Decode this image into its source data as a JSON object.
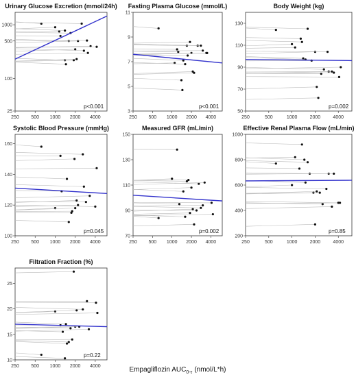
{
  "figure": {
    "x_label": "Empagliflozin AUC",
    "x_label_sub": "0-τ",
    "x_label_unit": "(nmol/L*h)",
    "x_ticks": [
      250,
      500,
      1000,
      2000,
      4000
    ],
    "regression_color": "#3333cc",
    "line_color": "#bbbbbb",
    "point_color": "#111111"
  },
  "chart_data": [
    {
      "type": "scatter",
      "title": "Urinary Glucose Excretion (mmol/24h)",
      "y_scale": "log",
      "ylim": [
        25,
        1700
      ],
      "y_ticks": [
        25,
        100,
        500,
        1000
      ],
      "xlim": [
        250,
        6000
      ],
      "p_value": "p<0.001",
      "regression": [
        [
          250,
          230
        ],
        [
          6000,
          1450
        ]
      ],
      "subjects": [
        {
          "x": 620,
          "y": 1050
        },
        {
          "x": 1000,
          "y": 900
        },
        {
          "x": 1150,
          "y": 750
        },
        {
          "x": 1200,
          "y": 620
        },
        {
          "x": 1400,
          "y": 780
        },
        {
          "x": 1600,
          "y": 500
        },
        {
          "x": 1700,
          "y": 700
        },
        {
          "x": 2000,
          "y": 350
        },
        {
          "x": 2200,
          "y": 500
        },
        {
          "x": 2500,
          "y": 1050
        },
        {
          "x": 3000,
          "y": 510
        },
        {
          "x": 3100,
          "y": 300
        },
        {
          "x": 3400,
          "y": 400
        },
        {
          "x": 4200,
          "y": 390
        },
        {
          "x": 1400,
          "y": 220
        },
        {
          "x": 1450,
          "y": 185
        },
        {
          "x": 1900,
          "y": 220
        },
        {
          "x": 2100,
          "y": 230
        },
        {
          "x": 2700,
          "y": 330
        }
      ]
    },
    {
      "type": "scatter",
      "title": "Fasting Plasma Glucose (mmol/L)",
      "y_scale": "linear",
      "ylim": [
        3,
        11
      ],
      "y_ticks": [
        3,
        5,
        7,
        9,
        11
      ],
      "xlim": [
        250,
        6000
      ],
      "p_value": "p<0.001",
      "regression": [
        [
          250,
          7.6
        ],
        [
          6000,
          6.9
        ]
      ],
      "subjects": [
        {
          "x": 620,
          "y": 9.7
        },
        {
          "x": 1100,
          "y": 6.9
        },
        {
          "x": 1200,
          "y": 8.0
        },
        {
          "x": 1250,
          "y": 7.8
        },
        {
          "x": 1400,
          "y": 5.5
        },
        {
          "x": 1450,
          "y": 4.7
        },
        {
          "x": 1500,
          "y": 7.1
        },
        {
          "x": 1600,
          "y": 6.8
        },
        {
          "x": 1700,
          "y": 8.3
        },
        {
          "x": 1750,
          "y": 7.5
        },
        {
          "x": 1900,
          "y": 8.6
        },
        {
          "x": 2000,
          "y": 7.7
        },
        {
          "x": 2100,
          "y": 6.2
        },
        {
          "x": 2200,
          "y": 6.1
        },
        {
          "x": 2500,
          "y": 8.3
        },
        {
          "x": 2800,
          "y": 8.3
        },
        {
          "x": 3000,
          "y": 7.9
        },
        {
          "x": 3400,
          "y": 7.7
        },
        {
          "x": 3500,
          "y": 7.7
        }
      ]
    },
    {
      "type": "scatter",
      "title": "Body Weight (kg)",
      "y_scale": "linear",
      "ylim": [
        50,
        140
      ],
      "y_ticks": [
        50,
        70,
        90,
        110,
        130
      ],
      "xlim": [
        250,
        6000
      ],
      "p_value": "p=0.002",
      "regression": [
        [
          250,
          97
        ],
        [
          6000,
          96
        ]
      ],
      "subjects": [
        {
          "x": 620,
          "y": 124
        },
        {
          "x": 1000,
          "y": 111
        },
        {
          "x": 1100,
          "y": 108
        },
        {
          "x": 1300,
          "y": 116
        },
        {
          "x": 1350,
          "y": 113
        },
        {
          "x": 1400,
          "y": 98
        },
        {
          "x": 1500,
          "y": 97
        },
        {
          "x": 1600,
          "y": 125
        },
        {
          "x": 1800,
          "y": 96
        },
        {
          "x": 2000,
          "y": 104
        },
        {
          "x": 2100,
          "y": 72
        },
        {
          "x": 2200,
          "y": 62
        },
        {
          "x": 2400,
          "y": 84
        },
        {
          "x": 2600,
          "y": 88
        },
        {
          "x": 2900,
          "y": 104
        },
        {
          "x": 3000,
          "y": 86
        },
        {
          "x": 3300,
          "y": 86
        },
        {
          "x": 3500,
          "y": 85
        },
        {
          "x": 4300,
          "y": 90
        },
        {
          "x": 4100,
          "y": 81
        }
      ]
    },
    {
      "type": "scatter",
      "title": "Systolic Blood Pressure (mmHg)",
      "y_scale": "linear",
      "ylim": [
        100,
        166
      ],
      "y_ticks": [
        100,
        120,
        140,
        160
      ],
      "xlim": [
        250,
        6000
      ],
      "p_value": "p=0.045",
      "regression": [
        [
          250,
          131
        ],
        [
          6000,
          127.5
        ]
      ],
      "subjects": [
        {
          "x": 620,
          "y": 158
        },
        {
          "x": 1000,
          "y": 118
        },
        {
          "x": 1200,
          "y": 152
        },
        {
          "x": 1250,
          "y": 129
        },
        {
          "x": 1500,
          "y": 137
        },
        {
          "x": 1600,
          "y": 109
        },
        {
          "x": 1800,
          "y": 116
        },
        {
          "x": 1950,
          "y": 150
        },
        {
          "x": 2000,
          "y": 118
        },
        {
          "x": 2100,
          "y": 123
        },
        {
          "x": 2200,
          "y": 120
        },
        {
          "x": 2600,
          "y": 153
        },
        {
          "x": 2700,
          "y": 132
        },
        {
          "x": 2900,
          "y": 122
        },
        {
          "x": 3300,
          "y": 126
        },
        {
          "x": 4200,
          "y": 144
        },
        {
          "x": 4000,
          "y": 119
        },
        {
          "x": 1750,
          "y": 115
        }
      ]
    },
    {
      "type": "scatter",
      "title": "Measured GFR (mL/min)",
      "y_scale": "linear",
      "ylim": [
        70,
        150
      ],
      "y_ticks": [
        70,
        90,
        110,
        130,
        150
      ],
      "xlim": [
        250,
        6000
      ],
      "p_value": "p=0.002",
      "regression": [
        [
          250,
          102
        ],
        [
          6000,
          97.5
        ]
      ],
      "subjects": [
        {
          "x": 620,
          "y": 84
        },
        {
          "x": 1000,
          "y": 115
        },
        {
          "x": 1200,
          "y": 138
        },
        {
          "x": 1300,
          "y": 95
        },
        {
          "x": 1500,
          "y": 105
        },
        {
          "x": 1600,
          "y": 85
        },
        {
          "x": 1700,
          "y": 113
        },
        {
          "x": 1800,
          "y": 114
        },
        {
          "x": 1900,
          "y": 88
        },
        {
          "x": 2000,
          "y": 108
        },
        {
          "x": 2100,
          "y": 91
        },
        {
          "x": 2200,
          "y": 79
        },
        {
          "x": 2400,
          "y": 90
        },
        {
          "x": 2600,
          "y": 111
        },
        {
          "x": 2800,
          "y": 92
        },
        {
          "x": 3000,
          "y": 94
        },
        {
          "x": 3200,
          "y": 112
        },
        {
          "x": 4300,
          "y": 87
        },
        {
          "x": 4100,
          "y": 96
        }
      ]
    },
    {
      "type": "scatter",
      "title": "Effective Renal Plasma Flow (mL/min)",
      "y_scale": "linear",
      "ylim": [
        200,
        1000
      ],
      "y_ticks": [
        200,
        400,
        600,
        800,
        1000
      ],
      "xlim": [
        250,
        6000
      ],
      "p_value": "p=0.85",
      "regression": [
        [
          250,
          633
        ],
        [
          6000,
          638
        ]
      ],
      "subjects": [
        {
          "x": 620,
          "y": 770
        },
        {
          "x": 1000,
          "y": 600
        },
        {
          "x": 1100,
          "y": 820
        },
        {
          "x": 1250,
          "y": 730
        },
        {
          "x": 1350,
          "y": 920
        },
        {
          "x": 1450,
          "y": 800
        },
        {
          "x": 1500,
          "y": 620
        },
        {
          "x": 1600,
          "y": 780
        },
        {
          "x": 1700,
          "y": 690
        },
        {
          "x": 1900,
          "y": 540
        },
        {
          "x": 2000,
          "y": 290
        },
        {
          "x": 2100,
          "y": 550
        },
        {
          "x": 2300,
          "y": 540
        },
        {
          "x": 2500,
          "y": 450
        },
        {
          "x": 2800,
          "y": 570
        },
        {
          "x": 3000,
          "y": 690
        },
        {
          "x": 3300,
          "y": 430
        },
        {
          "x": 3500,
          "y": 690
        },
        {
          "x": 4200,
          "y": 460
        },
        {
          "x": 4000,
          "y": 460
        }
      ]
    },
    {
      "type": "scatter",
      "title": "Filtration Fraction (%)",
      "y_scale": "linear",
      "ylim": [
        10,
        28
      ],
      "y_ticks": [
        10,
        15,
        20,
        25
      ],
      "xlim": [
        250,
        6000
      ],
      "p_value": "p=0.22",
      "regression": [
        [
          250,
          17
        ],
        [
          6000,
          16.5
        ]
      ],
      "subjects": [
        {
          "x": 620,
          "y": 11
        },
        {
          "x": 1000,
          "y": 19.5
        },
        {
          "x": 1200,
          "y": 16.8
        },
        {
          "x": 1300,
          "y": 15.5
        },
        {
          "x": 1400,
          "y": 10.3
        },
        {
          "x": 1500,
          "y": 13.2
        },
        {
          "x": 1600,
          "y": 13.5
        },
        {
          "x": 1700,
          "y": 16.2
        },
        {
          "x": 1800,
          "y": 14.0
        },
        {
          "x": 1900,
          "y": 27.3
        },
        {
          "x": 2000,
          "y": 16.5
        },
        {
          "x": 2100,
          "y": 19.7
        },
        {
          "x": 2300,
          "y": 16.5
        },
        {
          "x": 2600,
          "y": 19.9
        },
        {
          "x": 3000,
          "y": 21.5
        },
        {
          "x": 3200,
          "y": 16.0
        },
        {
          "x": 4100,
          "y": 21.2
        },
        {
          "x": 4300,
          "y": 19.2
        },
        {
          "x": 1450,
          "y": 17.0
        }
      ]
    }
  ]
}
